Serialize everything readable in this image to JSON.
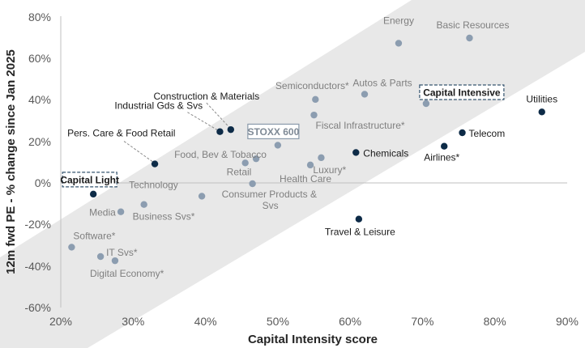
{
  "chart_data": {
    "type": "scatter",
    "title": "",
    "xlabel": "Capital Intensity score",
    "ylabel": "12m fwd PE - % change since Jan 2025",
    "xlim": [
      20,
      90
    ],
    "ylim": [
      -60,
      80
    ],
    "x_ticks": [
      "20%",
      "30%",
      "40%",
      "50%",
      "60%",
      "70%",
      "80%",
      "90%"
    ],
    "y_ticks": [
      "80%",
      "60%",
      "40%",
      "20%",
      "0%",
      "-20%",
      "-40%",
      "-60%"
    ],
    "colors": {
      "grey": "#8c9db0",
      "dark": "#0d2b47",
      "band": "#e8e8e8",
      "axis": "#bfbfbf",
      "box": "#34536e",
      "stoxx_box": "#8a9aab"
    },
    "band_label_light": "Capital Light",
    "band_label_intensive": "Capital Intensive",
    "points": [
      {
        "name": "Energy",
        "x": 66.7,
        "y": 67,
        "group": "grey"
      },
      {
        "name": "Basic Resources",
        "x": 76.5,
        "y": 69.5,
        "group": "grey"
      },
      {
        "name": "Construction & Materials",
        "x": 43.5,
        "y": 25.5,
        "group": "dark"
      },
      {
        "name": "Semiconductors*",
        "x": 55.2,
        "y": 40,
        "group": "grey"
      },
      {
        "name": "Autos & Parts",
        "x": 62,
        "y": 42.5,
        "group": "grey"
      },
      {
        "name": "Capital Intensive",
        "x": 70.5,
        "y": 38,
        "group": "grey"
      },
      {
        "name": "Utilities",
        "x": 86.5,
        "y": 34,
        "group": "dark"
      },
      {
        "name": "Industrial Gds & Svs",
        "x": 42,
        "y": 24.5,
        "group": "dark"
      },
      {
        "name": "Fiscal Infrastructure*",
        "x": 55,
        "y": 32.5,
        "group": "grey"
      },
      {
        "name": "Pers. Care & Food Retail",
        "x": 33,
        "y": 9,
        "group": "dark"
      },
      {
        "name": "STOXX 600",
        "x": 50,
        "y": 18,
        "group": "grey"
      },
      {
        "name": "Telecom",
        "x": 75.5,
        "y": 24,
        "group": "dark"
      },
      {
        "name": "Food, Bev & Tobacco",
        "x": 47,
        "y": 11.5,
        "group": "grey"
      },
      {
        "name": "Retail",
        "x": 45.5,
        "y": 9.5,
        "group": "grey"
      },
      {
        "name": "Chemicals",
        "x": 60.8,
        "y": 14.5,
        "group": "dark"
      },
      {
        "name": "Airlines*",
        "x": 73,
        "y": 17.5,
        "group": "dark"
      },
      {
        "name": "Luxury*",
        "x": 56,
        "y": 12,
        "group": "grey"
      },
      {
        "name": "Health Care",
        "x": 54.5,
        "y": 8.5,
        "group": "grey"
      },
      {
        "name": "Capital Light",
        "x": 24.5,
        "y": -5.5,
        "group": "dark"
      },
      {
        "name": "Technology",
        "x": 39.5,
        "y": -6.5,
        "group": "grey"
      },
      {
        "name": "Consumer Products & Svs",
        "x": 46.5,
        "y": -0.5,
        "group": "grey"
      },
      {
        "name": "Media",
        "x": 28.3,
        "y": -14,
        "group": "grey"
      },
      {
        "name": "Business Svs*",
        "x": 31.5,
        "y": -10.5,
        "group": "grey"
      },
      {
        "name": "Travel & Leisure",
        "x": 61.2,
        "y": -17.5,
        "group": "dark"
      },
      {
        "name": "Software*",
        "x": 21.5,
        "y": -31,
        "group": "grey"
      },
      {
        "name": "IT Svs*",
        "x": 25.5,
        "y": -35.5,
        "group": "grey"
      },
      {
        "name": "Digital Economy*",
        "x": 27.5,
        "y": -37.5,
        "group": "grey"
      }
    ]
  }
}
